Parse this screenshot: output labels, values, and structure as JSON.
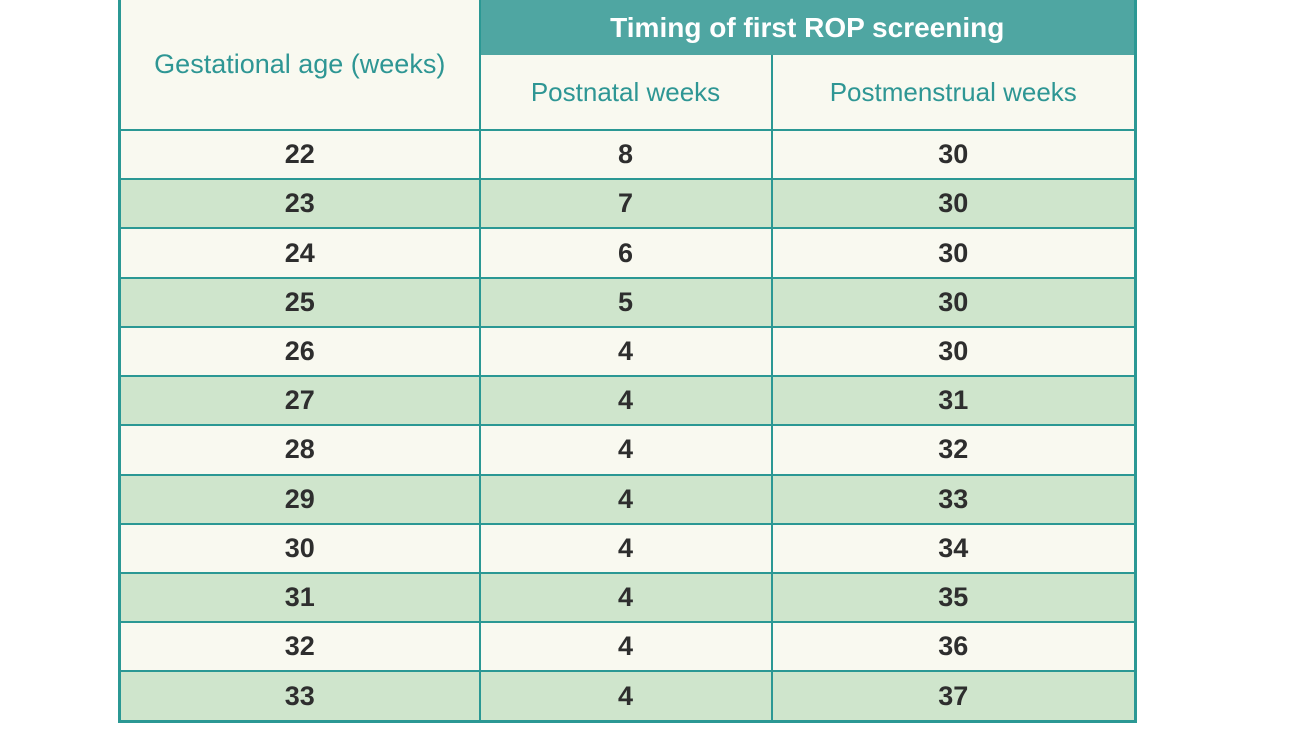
{
  "table": {
    "banner": "Timing of first ROP screening",
    "col1_header": "Gestational age (weeks)",
    "sub_headers": [
      "Postnatal weeks",
      "Postmenstrual weeks"
    ],
    "rows": [
      {
        "gestational_age": "22",
        "postnatal_weeks": "8",
        "postmenstrual_weeks": "30"
      },
      {
        "gestational_age": "23",
        "postnatal_weeks": "7",
        "postmenstrual_weeks": "30"
      },
      {
        "gestational_age": "24",
        "postnatal_weeks": "6",
        "postmenstrual_weeks": "30"
      },
      {
        "gestational_age": "25",
        "postnatal_weeks": "5",
        "postmenstrual_weeks": "30"
      },
      {
        "gestational_age": "26",
        "postnatal_weeks": "4",
        "postmenstrual_weeks": "30"
      },
      {
        "gestational_age": "27",
        "postnatal_weeks": "4",
        "postmenstrual_weeks": "31"
      },
      {
        "gestational_age": "28",
        "postnatal_weeks": "4",
        "postmenstrual_weeks": "32"
      },
      {
        "gestational_age": "29",
        "postnatal_weeks": "4",
        "postmenstrual_weeks": "33"
      },
      {
        "gestational_age": "30",
        "postnatal_weeks": "4",
        "postmenstrual_weeks": "34"
      },
      {
        "gestational_age": "31",
        "postnatal_weeks": "4",
        "postmenstrual_weeks": "35"
      },
      {
        "gestational_age": "32",
        "postnatal_weeks": "4",
        "postmenstrual_weeks": "36"
      },
      {
        "gestational_age": "33",
        "postnatal_weeks": "4",
        "postmenstrual_weeks": "37"
      }
    ]
  },
  "colors": {
    "teal-banner": "#4FA6A2",
    "border-teal": "#2B9894",
    "row-green": "#CFE5CC",
    "row-cream": "#F9F9F0",
    "header-text": "#2E9694",
    "data-text": "#2E2E2E",
    "banner-text": "#FFFFFF",
    "page-bg": "#FFFFFF"
  }
}
